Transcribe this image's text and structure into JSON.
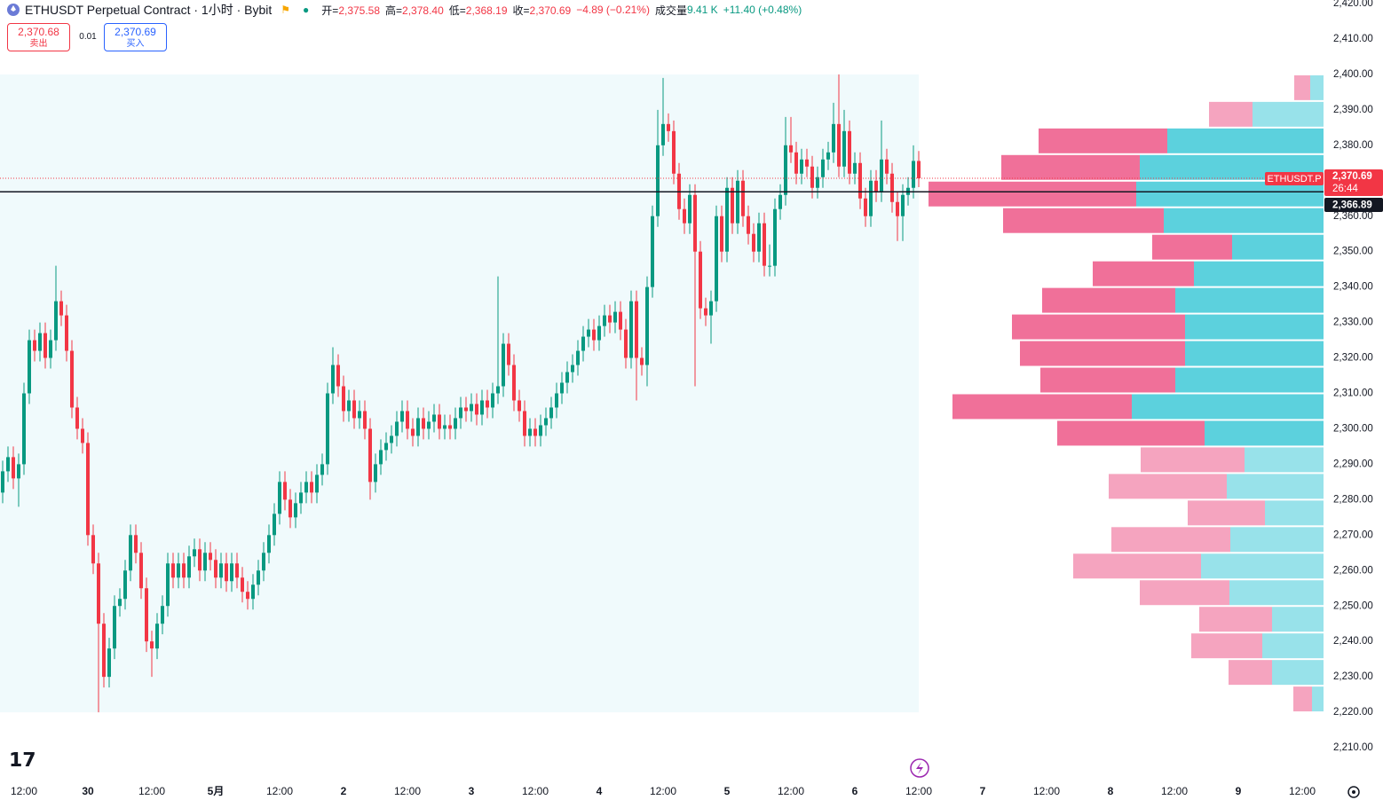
{
  "header": {
    "symbol": "ETHUSDT Perpetual Contract · 1小时 · Bybit",
    "ohlc": [
      {
        "label": "开=",
        "value": "2,375.58"
      },
      {
        "label": "高=",
        "value": "2,378.40"
      },
      {
        "label": "低=",
        "value": "2,368.19"
      },
      {
        "label": "收=",
        "value": "2,370.69"
      }
    ],
    "change": "−4.89 (−0.21%)",
    "volume_label": "成交量",
    "volume": "9.41 K",
    "volume_change": "+11.40 (+0.48%)"
  },
  "trade": {
    "sell_price": "2,370.68",
    "sell": "卖出",
    "spread": "0.01",
    "buy_price": "2,370.69",
    "buy": "买入"
  },
  "chart_data": {
    "type": "candlestick",
    "up_color": "#089981",
    "down_color": "#f23645",
    "xlim": [
      -4.5,
      244
    ],
    "ylim": [
      2202,
      2421
    ],
    "xticks": [
      {
        "value": 0,
        "label": "12:00"
      },
      {
        "value": 12,
        "label": "30"
      },
      {
        "value": 24,
        "label": "12:00"
      },
      {
        "value": 36,
        "label": "5月"
      },
      {
        "value": 48,
        "label": "12:00"
      },
      {
        "value": 60,
        "label": "2"
      },
      {
        "value": 72,
        "label": "12:00"
      },
      {
        "value": 84,
        "label": "3"
      },
      {
        "value": 96,
        "label": "12:00"
      },
      {
        "value": 108,
        "label": "4"
      },
      {
        "value": 120,
        "label": "12:00"
      },
      {
        "value": 132,
        "label": "5"
      },
      {
        "value": 144,
        "label": "12:00"
      },
      {
        "value": 156,
        "label": "6"
      },
      {
        "value": 168,
        "label": "12:00"
      },
      {
        "value": 180,
        "label": "7"
      },
      {
        "value": 192,
        "label": "12:00"
      },
      {
        "value": 204,
        "label": "8"
      },
      {
        "value": 216,
        "label": "12:00"
      },
      {
        "value": 228,
        "label": "9"
      },
      {
        "value": 240,
        "label": "12:00"
      }
    ],
    "yticks": [
      {
        "value": 2210,
        "label": "2,210.00"
      },
      {
        "value": 2220,
        "label": "2,220.00"
      },
      {
        "value": 2230,
        "label": "2,230.00"
      },
      {
        "value": 2240,
        "label": "2,240.00"
      },
      {
        "value": 2250,
        "label": "2,250.00"
      },
      {
        "value": 2260,
        "label": "2,260.00"
      },
      {
        "value": 2270,
        "label": "2,270.00"
      },
      {
        "value": 2280,
        "label": "2,280.00"
      },
      {
        "value": 2290,
        "label": "2,290.00"
      },
      {
        "value": 2300,
        "label": "2,300.00"
      },
      {
        "value": 2310,
        "label": "2,310.00"
      },
      {
        "value": 2320,
        "label": "2,320.00"
      },
      {
        "value": 2330,
        "label": "2,330.00"
      },
      {
        "value": 2340,
        "label": "2,340.00"
      },
      {
        "value": 2350,
        "label": "2,350.00"
      },
      {
        "value": 2360,
        "label": "2,360.00"
      },
      {
        "value": 2370,
        "label": "2,370.00"
      },
      {
        "value": 2380,
        "label": "2,380.00"
      },
      {
        "value": 2390,
        "label": "2,390.00"
      },
      {
        "value": 2400,
        "label": "2,400.00"
      },
      {
        "value": 2410,
        "label": "2,410.00"
      },
      {
        "value": 2420,
        "label": "2,420.00"
      }
    ],
    "x": [
      -4,
      -3,
      -2,
      -1,
      0,
      1,
      2,
      3,
      4,
      5,
      6,
      7,
      8,
      9,
      10,
      11,
      12,
      13,
      14,
      15,
      16,
      17,
      18,
      19,
      20,
      21,
      22,
      23,
      24,
      25,
      26,
      27,
      28,
      29,
      30,
      31,
      32,
      33,
      34,
      35,
      36,
      37,
      38,
      39,
      40,
      41,
      42,
      43,
      44,
      45,
      46,
      47,
      48,
      49,
      50,
      51,
      52,
      53,
      54,
      55,
      56,
      57,
      58,
      59,
      60,
      61,
      62,
      63,
      64,
      65,
      66,
      67,
      68,
      69,
      70,
      71,
      72,
      73,
      74,
      75,
      76,
      77,
      78,
      79,
      80,
      81,
      82,
      83,
      84,
      85,
      86,
      87,
      88,
      89,
      90,
      91,
      92,
      93,
      94,
      95,
      96,
      97,
      98,
      99,
      100,
      101,
      102,
      103,
      104,
      105,
      106,
      107,
      108,
      109,
      110,
      111,
      112,
      113,
      114,
      115,
      116,
      117,
      118,
      119,
      120,
      121,
      122,
      123,
      124,
      125,
      126,
      127,
      128,
      129,
      130,
      131,
      132,
      133,
      134,
      135,
      136,
      137,
      138,
      139,
      140,
      141,
      142,
      143,
      144,
      145,
      146,
      147,
      148,
      149,
      150,
      151,
      152,
      153,
      154,
      155,
      156,
      157,
      158,
      159,
      160,
      161,
      162,
      163,
      164,
      165,
      166,
      167,
      168
    ],
    "ohlc": [
      [
        2282,
        2291,
        2279,
        2288
      ],
      [
        2288,
        2295,
        2285,
        2292
      ],
      [
        2292,
        2295,
        2283,
        2286
      ],
      [
        2286,
        2293,
        2278,
        2290
      ],
      [
        2290,
        2313,
        2287,
        2310
      ],
      [
        2310,
        2328,
        2307,
        2325
      ],
      [
        2325,
        2328,
        2319,
        2322
      ],
      [
        2322,
        2330,
        2319,
        2327
      ],
      [
        2327,
        2330,
        2317,
        2320
      ],
      [
        2320,
        2328,
        2317,
        2325
      ],
      [
        2325,
        2346,
        2322,
        2336
      ],
      [
        2336,
        2339,
        2329,
        2332
      ],
      [
        2332,
        2335,
        2319,
        2322
      ],
      [
        2322,
        2325,
        2303,
        2306
      ],
      [
        2306,
        2309,
        2297,
        2300
      ],
      [
        2300,
        2303,
        2293,
        2296
      ],
      [
        2296,
        2299,
        2267,
        2270
      ],
      [
        2270,
        2273,
        2259,
        2262
      ],
      [
        2262,
        2265,
        2220,
        2245
      ],
      [
        2245,
        2248,
        2227,
        2230
      ],
      [
        2230,
        2241,
        2227,
        2238
      ],
      [
        2238,
        2253,
        2235,
        2250
      ],
      [
        2250,
        2255,
        2247,
        2252
      ],
      [
        2252,
        2263,
        2249,
        2260
      ],
      [
        2260,
        2273,
        2257,
        2270
      ],
      [
        2270,
        2273,
        2262,
        2265
      ],
      [
        2265,
        2268,
        2252,
        2255
      ],
      [
        2255,
        2258,
        2237,
        2240
      ],
      [
        2240,
        2243,
        2230,
        2238
      ],
      [
        2238,
        2248,
        2235,
        2245
      ],
      [
        2245,
        2253,
        2242,
        2250
      ],
      [
        2250,
        2265,
        2247,
        2262
      ],
      [
        2262,
        2265,
        2255,
        2258
      ],
      [
        2258,
        2265,
        2255,
        2262
      ],
      [
        2262,
        2265,
        2255,
        2258
      ],
      [
        2258,
        2267,
        2255,
        2264
      ],
      [
        2264,
        2269,
        2261,
        2266
      ],
      [
        2266,
        2269,
        2257,
        2260
      ],
      [
        2260,
        2268,
        2257,
        2265
      ],
      [
        2265,
        2268,
        2260,
        2263
      ],
      [
        2263,
        2266,
        2255,
        2258
      ],
      [
        2258,
        2265,
        2255,
        2262
      ],
      [
        2262,
        2265,
        2254,
        2257
      ],
      [
        2257,
        2265,
        2254,
        2262
      ],
      [
        2262,
        2265,
        2255,
        2258
      ],
      [
        2258,
        2261,
        2251,
        2254
      ],
      [
        2254,
        2257,
        2249,
        2252
      ],
      [
        2252,
        2259,
        2249,
        2256
      ],
      [
        2256,
        2263,
        2253,
        2260
      ],
      [
        2260,
        2268,
        2257,
        2265
      ],
      [
        2265,
        2273,
        2262,
        2270
      ],
      [
        2270,
        2279,
        2267,
        2276
      ],
      [
        2276,
        2288,
        2273,
        2285
      ],
      [
        2285,
        2288,
        2277,
        2280
      ],
      [
        2280,
        2283,
        2272,
        2275
      ],
      [
        2275,
        2282,
        2272,
        2279
      ],
      [
        2279,
        2285,
        2276,
        2282
      ],
      [
        2282,
        2288,
        2279,
        2285
      ],
      [
        2285,
        2288,
        2279,
        2282
      ],
      [
        2282,
        2290,
        2279,
        2287
      ],
      [
        2287,
        2293,
        2284,
        2290
      ],
      [
        2290,
        2313,
        2287,
        2310
      ],
      [
        2310,
        2323,
        2307,
        2318
      ],
      [
        2318,
        2321,
        2309,
        2312
      ],
      [
        2312,
        2315,
        2302,
        2305
      ],
      [
        2305,
        2311,
        2302,
        2308
      ],
      [
        2308,
        2311,
        2300,
        2303
      ],
      [
        2303,
        2308,
        2300,
        2305
      ],
      [
        2305,
        2308,
        2297,
        2300
      ],
      [
        2300,
        2303,
        2280,
        2285
      ],
      [
        2285,
        2293,
        2282,
        2290
      ],
      [
        2290,
        2297,
        2287,
        2294
      ],
      [
        2294,
        2299,
        2291,
        2296
      ],
      [
        2296,
        2301,
        2293,
        2298
      ],
      [
        2298,
        2305,
        2295,
        2302
      ],
      [
        2302,
        2308,
        2299,
        2305
      ],
      [
        2305,
        2308,
        2297,
        2300
      ],
      [
        2300,
        2303,
        2295,
        2298
      ],
      [
        2298,
        2306,
        2295,
        2303
      ],
      [
        2303,
        2306,
        2297,
        2300
      ],
      [
        2300,
        2305,
        2297,
        2302
      ],
      [
        2302,
        2307,
        2299,
        2304
      ],
      [
        2304,
        2307,
        2297,
        2300
      ],
      [
        2300,
        2304,
        2297,
        2301
      ],
      [
        2301,
        2304,
        2297,
        2300
      ],
      [
        2300,
        2306,
        2297,
        2303
      ],
      [
        2303,
        2309,
        2300,
        2306
      ],
      [
        2306,
        2309,
        2302,
        2305
      ],
      [
        2305,
        2310,
        2302,
        2307
      ],
      [
        2307,
        2310,
        2301,
        2304
      ],
      [
        2304,
        2311,
        2301,
        2308
      ],
      [
        2308,
        2311,
        2303,
        2306
      ],
      [
        2306,
        2313,
        2303,
        2310
      ],
      [
        2310,
        2343,
        2307,
        2312
      ],
      [
        2312,
        2327,
        2309,
        2324
      ],
      [
        2324,
        2327,
        2315,
        2318
      ],
      [
        2318,
        2321,
        2305,
        2308
      ],
      [
        2308,
        2311,
        2302,
        2305
      ],
      [
        2305,
        2308,
        2295,
        2298
      ],
      [
        2298,
        2303,
        2295,
        2300
      ],
      [
        2300,
        2303,
        2295,
        2298
      ],
      [
        2298,
        2304,
        2295,
        2301
      ],
      [
        2301,
        2306,
        2298,
        2303
      ],
      [
        2303,
        2309,
        2300,
        2306
      ],
      [
        2306,
        2313,
        2303,
        2310
      ],
      [
        2310,
        2316,
        2307,
        2313
      ],
      [
        2313,
        2319,
        2310,
        2316
      ],
      [
        2316,
        2321,
        2313,
        2318
      ],
      [
        2318,
        2325,
        2315,
        2322
      ],
      [
        2322,
        2329,
        2319,
        2326
      ],
      [
        2326,
        2331,
        2323,
        2328
      ],
      [
        2328,
        2331,
        2322,
        2325
      ],
      [
        2325,
        2332,
        2322,
        2329
      ],
      [
        2329,
        2335,
        2326,
        2332
      ],
      [
        2332,
        2335,
        2327,
        2330
      ],
      [
        2330,
        2336,
        2327,
        2333
      ],
      [
        2333,
        2336,
        2325,
        2328
      ],
      [
        2328,
        2331,
        2317,
        2320
      ],
      [
        2320,
        2339,
        2317,
        2336
      ],
      [
        2336,
        2339,
        2308,
        2320
      ],
      [
        2320,
        2323,
        2315,
        2318
      ],
      [
        2318,
        2343,
        2312,
        2340
      ],
      [
        2340,
        2363,
        2337,
        2360
      ],
      [
        2360,
        2390,
        2357,
        2380
      ],
      [
        2380,
        2399,
        2377,
        2386
      ],
      [
        2386,
        2389,
        2381,
        2384
      ],
      [
        2384,
        2387,
        2369,
        2372
      ],
      [
        2372,
        2375,
        2359,
        2362
      ],
      [
        2362,
        2365,
        2355,
        2358
      ],
      [
        2358,
        2369,
        2355,
        2366
      ],
      [
        2366,
        2369,
        2312,
        2350
      ],
      [
        2350,
        2353,
        2331,
        2334
      ],
      [
        2334,
        2337,
        2329,
        2332
      ],
      [
        2332,
        2339,
        2324,
        2336
      ],
      [
        2336,
        2363,
        2333,
        2360
      ],
      [
        2360,
        2363,
        2347,
        2350
      ],
      [
        2350,
        2371,
        2347,
        2368
      ],
      [
        2368,
        2371,
        2355,
        2358
      ],
      [
        2358,
        2373,
        2355,
        2370
      ],
      [
        2370,
        2373,
        2357,
        2360
      ],
      [
        2360,
        2363,
        2352,
        2355
      ],
      [
        2355,
        2358,
        2347,
        2350
      ],
      [
        2350,
        2361,
        2347,
        2358
      ],
      [
        2358,
        2361,
        2343,
        2346
      ],
      [
        2346,
        2352,
        2343,
        2346
      ],
      [
        2346,
        2365,
        2343,
        2362
      ],
      [
        2362,
        2369,
        2359,
        2366
      ],
      [
        2366,
        2388,
        2363,
        2380
      ],
      [
        2380,
        2388,
        2375,
        2378
      ],
      [
        2378,
        2381,
        2369,
        2372
      ],
      [
        2372,
        2379,
        2369,
        2376
      ],
      [
        2376,
        2379,
        2371,
        2374
      ],
      [
        2374,
        2377,
        2365,
        2368
      ],
      [
        2368,
        2374,
        2365,
        2371
      ],
      [
        2371,
        2379,
        2368,
        2376
      ],
      [
        2376,
        2381,
        2373,
        2378
      ],
      [
        2378,
        2392,
        2375,
        2386
      ],
      [
        2386,
        2400,
        2371,
        2374
      ],
      [
        2374,
        2390,
        2371,
        2384
      ],
      [
        2384,
        2387,
        2369,
        2372
      ],
      [
        2372,
        2378,
        2369,
        2375
      ],
      [
        2375,
        2378,
        2362,
        2365
      ],
      [
        2365,
        2368,
        2357,
        2360
      ],
      [
        2360,
        2373,
        2357,
        2370
      ],
      [
        2370,
        2373,
        2364,
        2367
      ],
      [
        2367,
        2387,
        2364,
        2376
      ],
      [
        2376,
        2379,
        2369,
        2372
      ],
      [
        2372,
        2375,
        2361,
        2364
      ],
      [
        2364,
        2367,
        2353,
        2360
      ],
      [
        2360,
        2369,
        2353,
        2366
      ],
      [
        2366,
        2371,
        2363,
        2368
      ],
      [
        2368,
        2380,
        2365,
        2375.58
      ],
      [
        2375.58,
        2378.4,
        2368.19,
        2370.69
      ]
    ],
    "volume_profile": {
      "bins": [
        2220,
        2227.5,
        2235,
        2242.5,
        2250,
        2257.5,
        2265,
        2272.5,
        2280,
        2287.5,
        2295,
        2302.5,
        2310,
        2317.5,
        2325,
        2332.5,
        2340,
        2347.5,
        2355,
        2362.5,
        2370,
        2377.5,
        2385,
        2392.5,
        2400
      ],
      "up": [
        13,
        58,
        69,
        58,
        106,
        138,
        105,
        66,
        109,
        89,
        134,
        216,
        167,
        156,
        156,
        167,
        146,
        103,
        180,
        211,
        207,
        176,
        80,
        15
      ],
      "down": [
        21,
        49,
        80,
        82,
        101,
        144,
        134,
        87,
        133,
        117,
        166,
        202,
        152,
        186,
        195,
        150,
        114,
        90,
        181,
        234,
        156,
        145,
        49,
        18
      ],
      "value_area": [
        2295,
        2385
      ],
      "up_color": "#5cd1dd",
      "down_color": "#f07099",
      "up_color_outside": "#98e2ea",
      "down_color_outside": "#f5a4bf",
      "area_color": "#f0fafc"
    },
    "last_price": {
      "value": 2370.69,
      "label": "2,370.69",
      "symbol": "ETHUSDT.P",
      "countdown": "26:44"
    },
    "cursor_price": {
      "value": 2366.89,
      "label": "2,366.89"
    }
  }
}
